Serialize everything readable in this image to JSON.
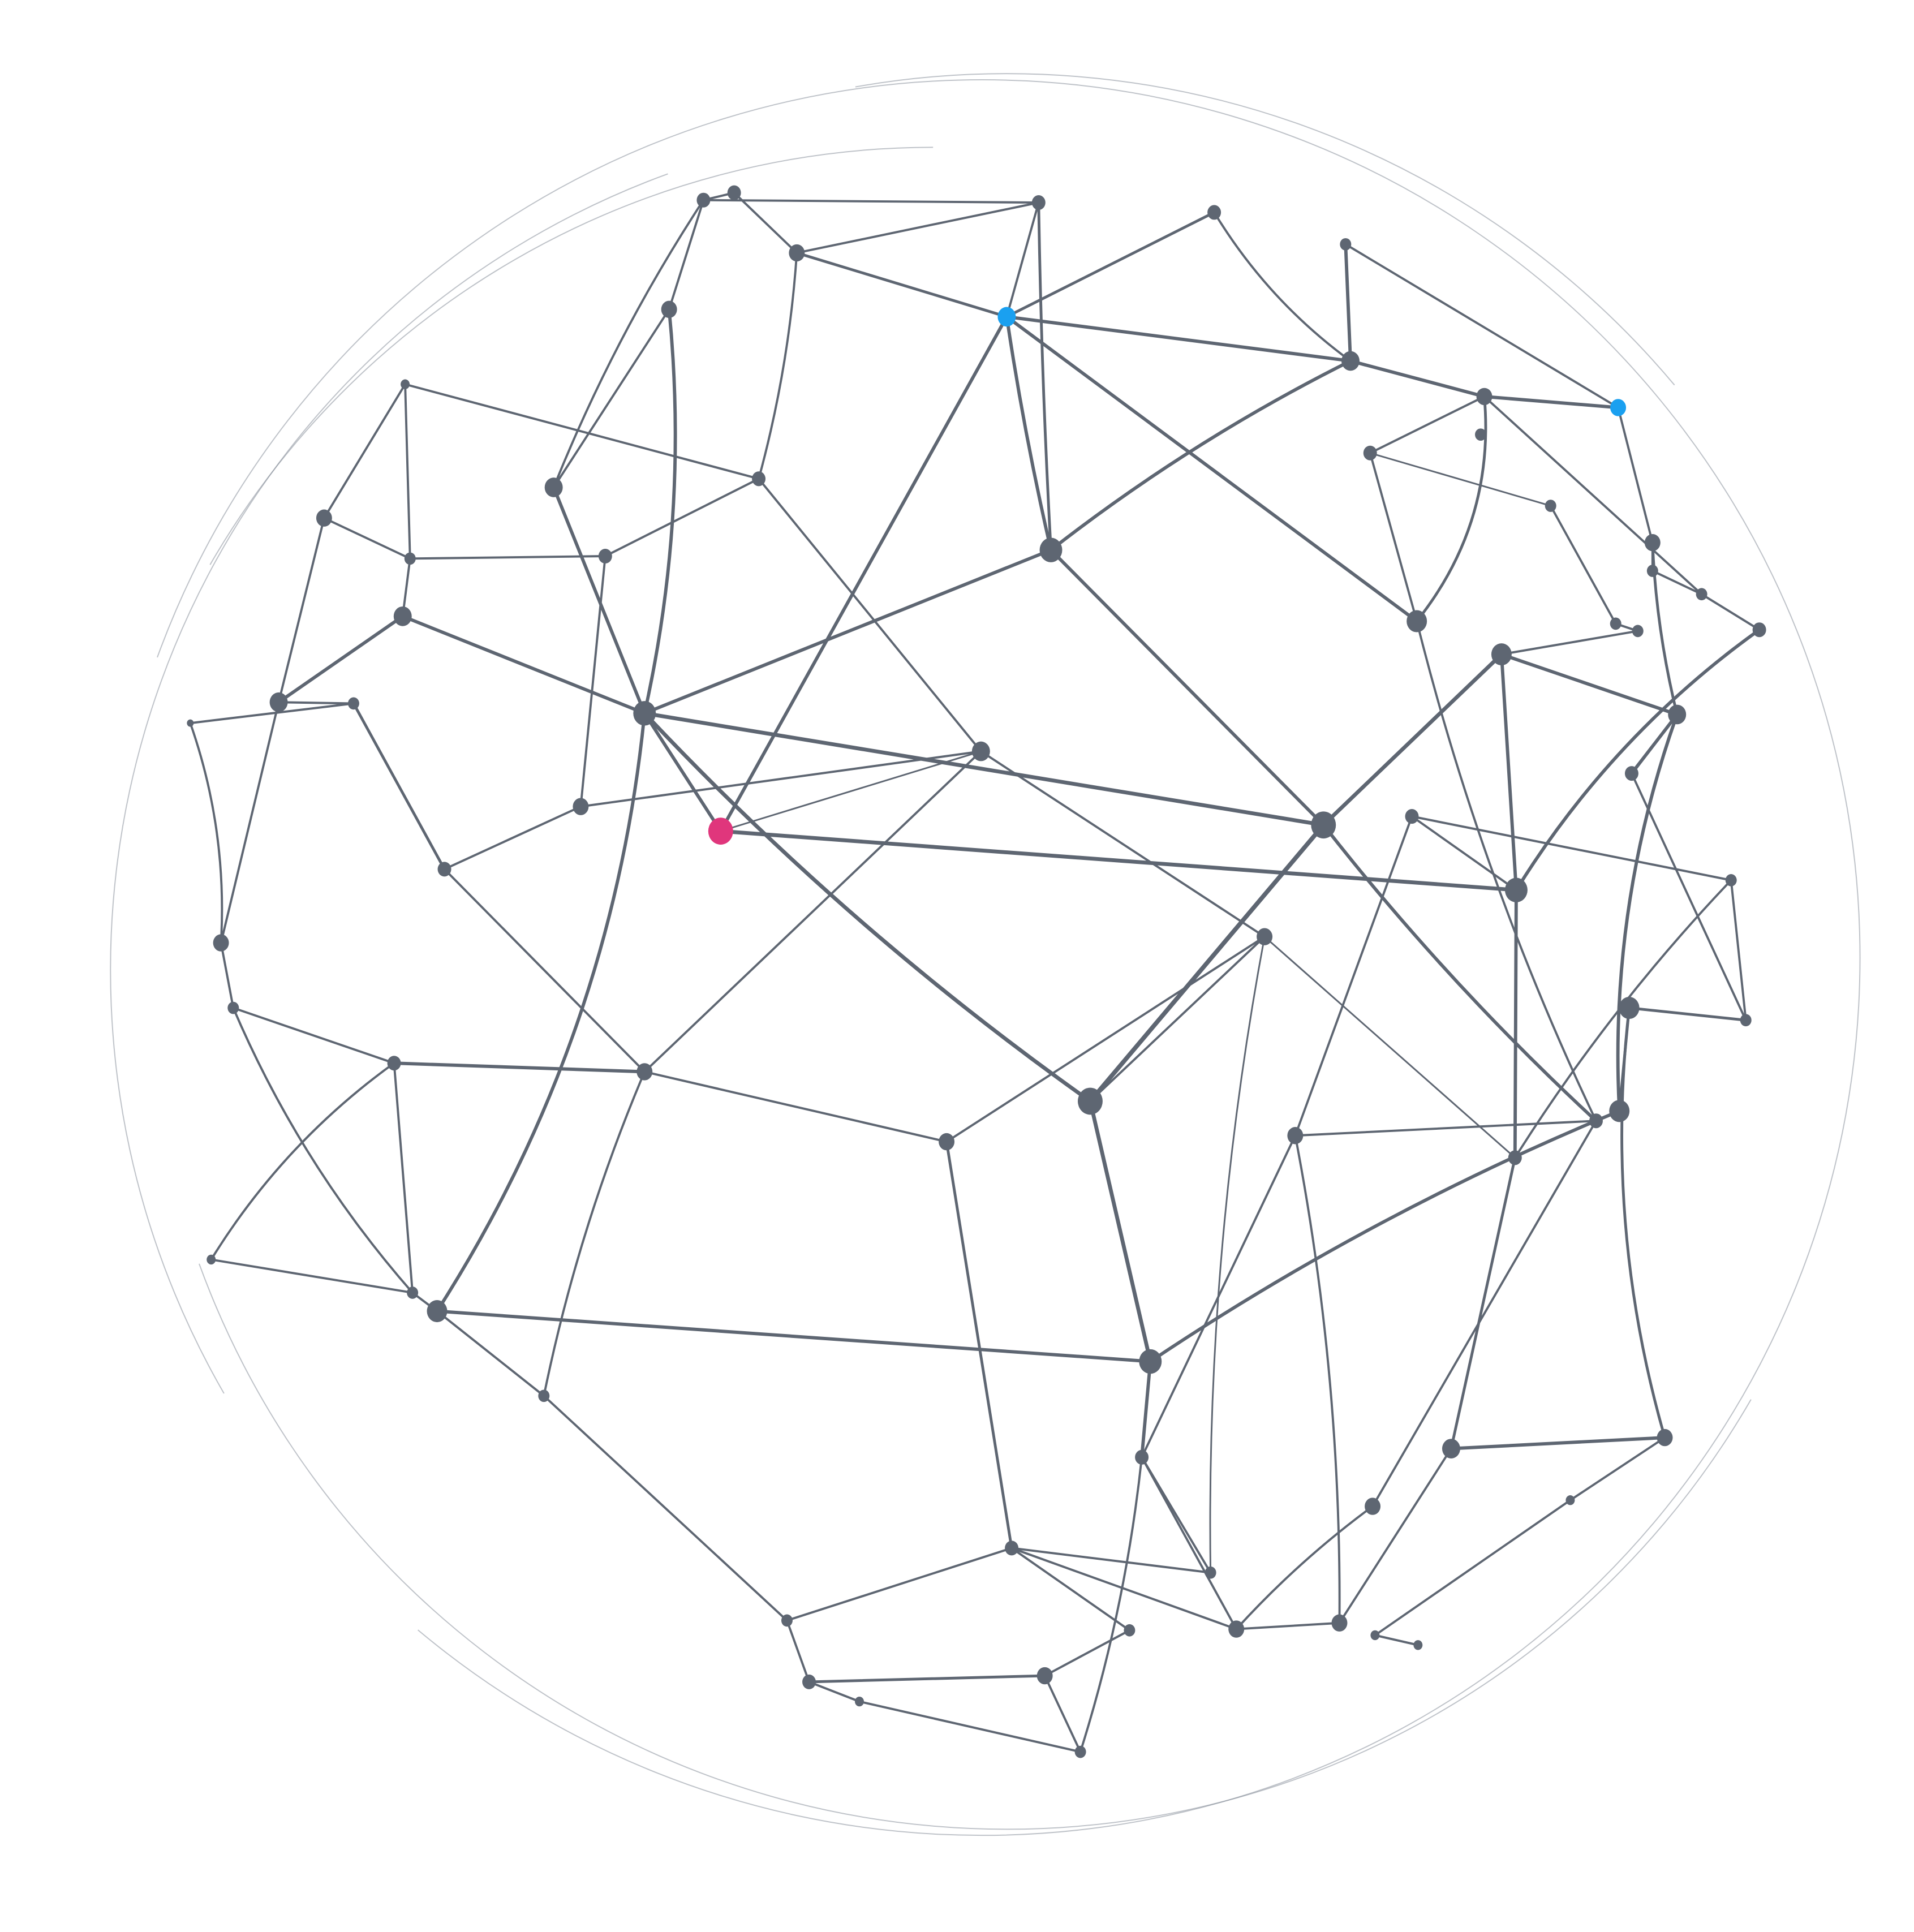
{
  "diagram": {
    "type": "network-globe",
    "node_color": "#5e6672",
    "edge_color": "#5e6672",
    "highlight_colors": {
      "primary": "#e0367c",
      "secondary": "#1aa0f0"
    },
    "nodes": [
      {
        "id": "n1",
        "kind": "primary"
      },
      {
        "id": "n2",
        "kind": "secondary"
      },
      {
        "id": "n3",
        "kind": "secondary"
      }
    ]
  }
}
